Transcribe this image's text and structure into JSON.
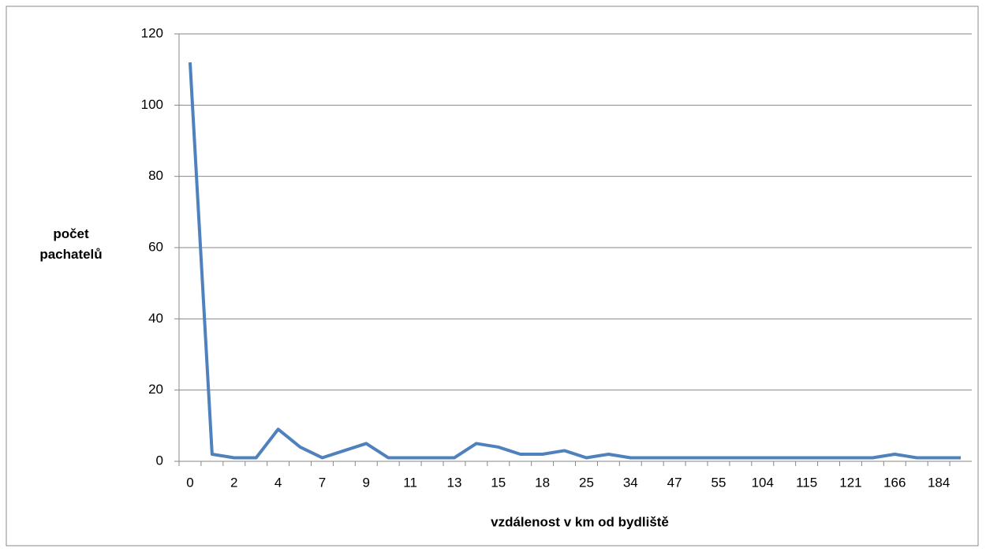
{
  "chart_data": {
    "type": "line",
    "xlabel": "vzdálenost v km od bydliště",
    "ylabel": "počet pachatelů",
    "categories": [
      "0",
      null,
      "2",
      null,
      "4",
      null,
      "7",
      null,
      "9",
      null,
      "11",
      null,
      "13",
      null,
      "15",
      null,
      "18",
      null,
      "25",
      null,
      "34",
      null,
      "47",
      null,
      "55",
      null,
      "104",
      null,
      "115",
      null,
      "121",
      null,
      "166",
      null,
      "184",
      null
    ],
    "values": [
      112,
      2,
      1,
      1,
      9,
      4,
      1,
      3,
      5,
      1,
      1,
      1,
      1,
      5,
      4,
      2,
      2,
      3,
      1,
      2,
      1,
      1,
      1,
      1,
      1,
      1,
      1,
      1,
      1,
      1,
      1,
      1,
      2,
      1,
      1,
      1
    ],
    "color": "#4f81bd",
    "ylim": [
      0,
      120
    ],
    "yticks": [
      0,
      20,
      40,
      60,
      80,
      100,
      120
    ],
    "grid": true
  }
}
